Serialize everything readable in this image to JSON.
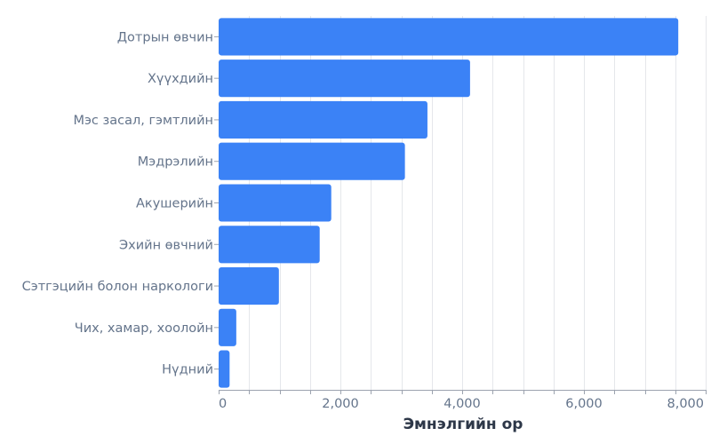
{
  "chart_data": {
    "type": "bar",
    "orientation": "horizontal",
    "title": "",
    "xlabel": "Эмнэлгийн ор",
    "ylabel": "",
    "categories": [
      "Дотрын өвчин",
      "Хүүхдийн",
      "Мэс засал, гэмтлийн",
      "Мэдрэлийн",
      "Акушерийн",
      "Эхийн өвчний",
      "Сэтгэцийн болон наркологи",
      "Чих, хамар, хоолойн",
      "Нүдний"
    ],
    "values": [
      7550,
      4130,
      3430,
      3060,
      1850,
      1660,
      990,
      290,
      180
    ],
    "xlim": [
      0,
      8000
    ],
    "x_ticks": [
      0,
      2000,
      4000,
      6000,
      8000
    ],
    "x_tick_labels": [
      "0",
      "2,000",
      "4,000",
      "6,000",
      "8,000"
    ],
    "minor_grid_step": 500,
    "grid": true,
    "legend": null,
    "bar_color": "#3b82f6"
  },
  "colors": {
    "bar": "#3b82f6",
    "label": "#64748b",
    "axis_title": "#2d3748",
    "grid": "#e5e7eb",
    "axis": "#9ca3af"
  }
}
